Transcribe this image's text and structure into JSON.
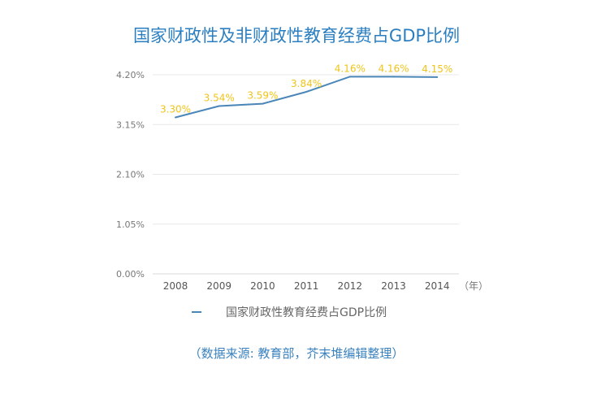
{
  "chart_data": {
    "type": "line",
    "title": "国家财政性及非财政性教育经费占GDP比例",
    "categories": [
      "2008",
      "2009",
      "2010",
      "2011",
      "2012",
      "2013",
      "2014"
    ],
    "series": [
      {
        "name": "国家财政性教育经费占GDP比例",
        "values": [
          3.3,
          3.54,
          3.59,
          3.84,
          4.16,
          4.16,
          4.15
        ]
      }
    ],
    "data_labels": [
      "3.30%",
      "3.54%",
      "3.59%",
      "3.84%",
      "4.16%",
      "4.16%",
      "4.15%"
    ],
    "y_ticks": [
      "0.00%",
      "1.05%",
      "2.10%",
      "3.15%",
      "4.20%"
    ],
    "y_tick_values": [
      0,
      1.05,
      2.1,
      3.15,
      4.2
    ],
    "ylim": [
      0,
      4.2
    ],
    "xunit": "（年）",
    "grid": true,
    "legend_position": "bottom",
    "colors": {
      "line": "#4a86b8",
      "labels": "#f0c419",
      "title": "#2b7fc1",
      "grid": "#e8e8e8"
    }
  },
  "source": "（数据来源: 教育部，芥末堆编辑整理）"
}
